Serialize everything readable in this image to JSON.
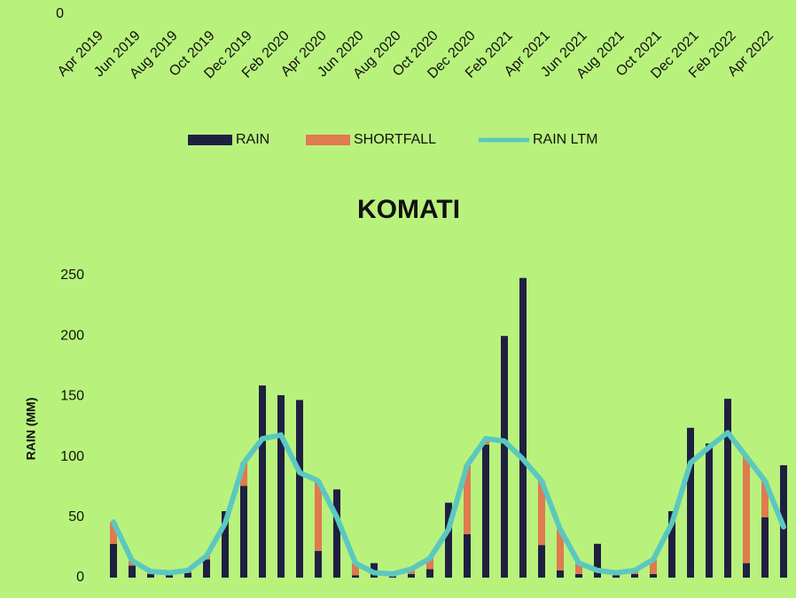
{
  "chart_data": [
    {
      "type": "bar",
      "categories": [
        "Apr 2019",
        null,
        "Jun 2019",
        null,
        "Aug 2019",
        null,
        "Oct 2019",
        null,
        "Dec 2019",
        null,
        "Feb 2020",
        null,
        "Apr 2020",
        null,
        "Jun 2020",
        null,
        "Aug 2020",
        null,
        "Oct 2020",
        null,
        "Dec 2020",
        null,
        "Feb 2021",
        null,
        "Apr 2021",
        null,
        "Jun 2021",
        null,
        "Aug 2021",
        null,
        "Oct 2021",
        null,
        "Dec 2021",
        null,
        "Feb 2022",
        null,
        "Apr 2022"
      ],
      "yticks": [
        0
      ],
      "series": [
        {
          "name": "RAIN",
          "color": "#1f2041"
        },
        {
          "name": "SHORTFALL",
          "color": "#e07a4f"
        },
        {
          "name": "RAIN LTM",
          "color": "#5bc8c0"
        }
      ],
      "legend": "bottom"
    },
    {
      "type": "bar",
      "title": "KOMATI",
      "y_label": "RAIN (MM)",
      "ylim": [
        0,
        250
      ],
      "yticks": [
        0,
        50,
        100,
        150,
        200,
        250
      ],
      "series": [
        {
          "name": "RAIN",
          "color": "#1f2041",
          "values": [
            28,
            10,
            3,
            2,
            4,
            15,
            55,
            76,
            159,
            151,
            147,
            22,
            73,
            2,
            12,
            1,
            3,
            7,
            62,
            36,
            110,
            200,
            248,
            27,
            6,
            3,
            28,
            2,
            3,
            3,
            55,
            124,
            111,
            148,
            12,
            50,
            93
          ]
        },
        {
          "name": "SHORTFALL",
          "color": "#e07a4f",
          "values": [
            18,
            4,
            2,
            2,
            2,
            3,
            0,
            19,
            0,
            0,
            0,
            58,
            0,
            10,
            0,
            2,
            4,
            9,
            0,
            57,
            5,
            0,
            0,
            53,
            34,
            9,
            0,
            2,
            3,
            12,
            0,
            0,
            0,
            0,
            88,
            30,
            0
          ]
        },
        {
          "name": "RAIN LTM",
          "color": "#5bc8c0",
          "values": [
            46,
            14,
            5,
            4,
            6,
            18,
            45,
            95,
            115,
            118,
            87,
            80,
            50,
            12,
            4,
            3,
            7,
            16,
            40,
            93,
            115,
            113,
            98,
            80,
            40,
            12,
            6,
            4,
            6,
            15,
            45,
            95,
            108,
            120,
            100,
            80,
            42
          ]
        }
      ]
    }
  ]
}
